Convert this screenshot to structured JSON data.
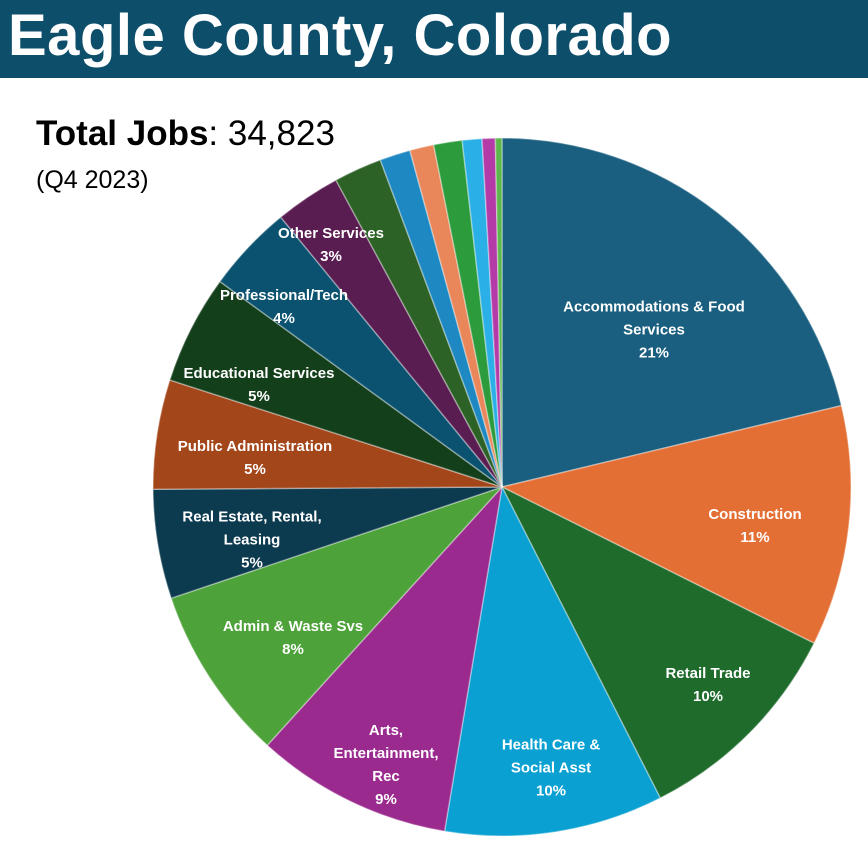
{
  "chart_data": {
    "type": "pie",
    "title": "Eagle County, Colorado",
    "total_label": "Total Jobs",
    "total_value": ": 34,823",
    "period": "(Q4 2023)",
    "categories": [
      "Accommodations & Food Services",
      "Construction",
      "Retail Trade",
      "Health Care & Social Asst",
      "Arts, Entertainment, Rec",
      "Admin & Waste Svs",
      "Real Estate, Rental, Leasing",
      "Public Administration",
      "Educational Services",
      "Professional/Tech",
      "Other Services",
      null,
      null,
      null,
      null,
      null,
      null,
      null
    ],
    "values": [
      21,
      11,
      10,
      10,
      9,
      8,
      5,
      5,
      5,
      4,
      3,
      2.2,
      1.4,
      1.1,
      1.3,
      0.9,
      0.6,
      0.3
    ],
    "value_labels": [
      "21%",
      "11%",
      "10%",
      "10%",
      "9%",
      "8%",
      "5%",
      "5%",
      "5%",
      "4%",
      "3%",
      null,
      null,
      null,
      null,
      null,
      null,
      null
    ],
    "colors": [
      "#1a5f7f",
      "#e46f35",
      "#1e6b2c",
      "#0aa0d2",
      "#9b2a8f",
      "#4ea23a",
      "#0c3a4f",
      "#a3461a",
      "#143f1b",
      "#0a526f",
      "#5a1d52",
      "#2d6227",
      "#1e88c2",
      "#e9875a",
      "#2c9b3c",
      "#2ab0e6",
      "#b43aa8",
      "#5cb84a"
    ]
  }
}
